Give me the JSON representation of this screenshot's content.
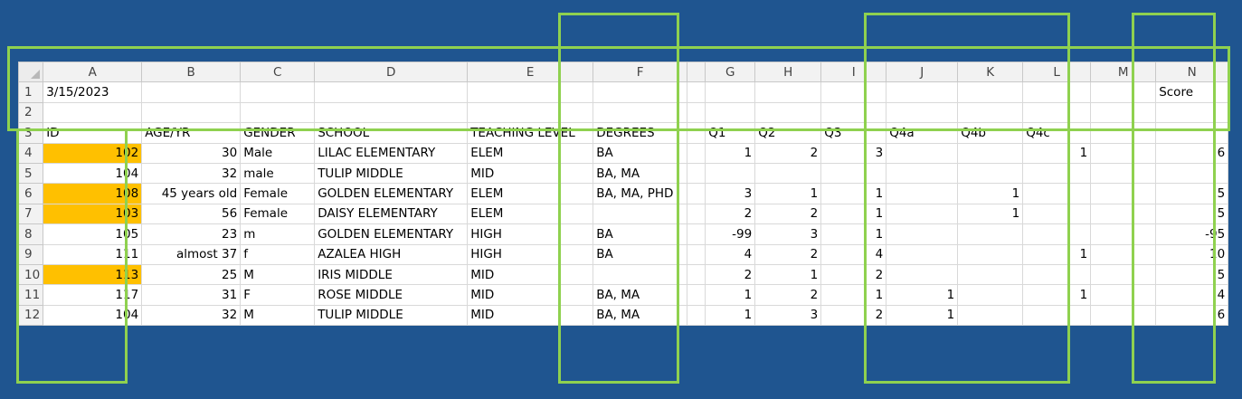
{
  "columns": [
    "A",
    "B",
    "C",
    "D",
    "E",
    "F",
    "G",
    "H",
    "I",
    "J",
    "K",
    "L",
    "M",
    "N"
  ],
  "rows": [
    {
      "n": "1",
      "cells": [
        "3/15/2023",
        "",
        "",
        "",
        "",
        "",
        "",
        "",
        "",
        "",
        "",
        "",
        "",
        "Score"
      ]
    },
    {
      "n": "2",
      "cells": [
        "",
        "",
        "",
        "",
        "",
        "",
        "",
        "",
        "",
        "",
        "",
        "",
        "",
        ""
      ]
    },
    {
      "n": "3",
      "cells": [
        "ID",
        "AGE/YR",
        "GENDER",
        "SCHOOL",
        "TEACHING LEVEL",
        "DEGREES",
        "Q1",
        "Q2",
        "Q3",
        "Q4a",
        "Q4b",
        "Q4c",
        "",
        ""
      ]
    },
    {
      "n": "4",
      "cells": [
        "102",
        "30",
        "Male",
        "LILAC ELEMENTARY",
        "ELEM",
        "BA",
        "1",
        "2",
        "3",
        "",
        "",
        "1",
        "",
        "6"
      ]
    },
    {
      "n": "5",
      "cells": [
        "104",
        "32",
        "male",
        "TULIP MIDDLE",
        "MID",
        "BA, MA",
        "",
        "",
        "",
        "",
        "",
        "",
        "",
        ""
      ]
    },
    {
      "n": "6",
      "cells": [
        "108",
        "45 years old",
        "Female",
        "GOLDEN ELEMENTARY",
        "ELEM",
        "BA, MA, PHD",
        "3",
        "1",
        "1",
        "",
        "1",
        "",
        "",
        "5"
      ]
    },
    {
      "n": "7",
      "cells": [
        "103",
        "56",
        "Female",
        "DAISY ELEMENTARY",
        "ELEM",
        "",
        "2",
        "2",
        "1",
        "",
        "1",
        "",
        "",
        "5"
      ]
    },
    {
      "n": "8",
      "cells": [
        "105",
        "23",
        "m",
        "GOLDEN ELEMENTARY",
        "HIGH",
        "BA",
        "-99",
        "3",
        "1",
        "",
        "",
        "",
        "",
        "-95"
      ]
    },
    {
      "n": "9",
      "cells": [
        "111",
        "almost 37",
        "f",
        "AZALEA HIGH",
        "HIGH",
        "BA",
        "4",
        "2",
        "4",
        "",
        "",
        "1",
        "",
        "10"
      ]
    },
    {
      "n": "10",
      "cells": [
        "113",
        "25",
        "M",
        "IRIS MIDDLE",
        "MID",
        "",
        "2",
        "1",
        "2",
        "",
        "",
        "",
        "",
        "5"
      ]
    },
    {
      "n": "11",
      "cells": [
        "117",
        "31",
        "F",
        "ROSE MIDDLE",
        "MID",
        "BA, MA",
        "1",
        "2",
        "1",
        "1",
        "",
        "1",
        "",
        "4"
      ]
    },
    {
      "n": "12",
      "cells": [
        "104",
        "32",
        "M",
        "TULIP MIDDLE",
        "MID",
        "BA, MA",
        "1",
        "3",
        "2",
        "1",
        "",
        "",
        "",
        "6"
      ]
    }
  ],
  "colors": {
    "background": "#1f5590",
    "highlight_fill": "#ffc000",
    "annotation_box": "#8fd14f"
  }
}
